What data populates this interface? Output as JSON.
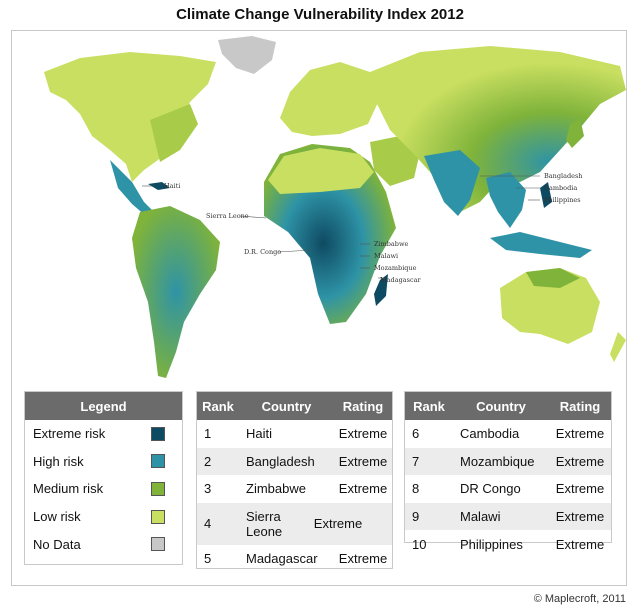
{
  "title": "Climate Change Vulnerability Index 2012",
  "credit": "© Maplecroft, 2011",
  "colors": {
    "extreme": "#0e4a62",
    "high": "#2e93a6",
    "medium": "#7fb33a",
    "low": "#c9df61",
    "no_data": "#c8c8c8"
  },
  "map_labels": {
    "haiti": "Haiti",
    "sierra_leone": "Sierra Leone",
    "dr_congo": "D.R. Congo",
    "zimbabwe": "Zimbabwe",
    "malawi": "Malawi",
    "mozambique": "Mozambique",
    "madagascar": "Madagascar",
    "bangladesh": "Bangladesh",
    "cambodia": "Cambodia",
    "philippines": "Philippines"
  },
  "legend": {
    "header": "Legend",
    "items": [
      {
        "label": "Extreme risk",
        "color": "#0e4a62"
      },
      {
        "label": "High risk",
        "color": "#2e93a6"
      },
      {
        "label": "Medium risk",
        "color": "#7fb33a"
      },
      {
        "label": "Low risk",
        "color": "#c9df61"
      },
      {
        "label": "No Data",
        "color": "#c8c8c8"
      }
    ]
  },
  "table": {
    "headers": {
      "rank": "Rank",
      "country": "Country",
      "rating": "Rating"
    },
    "rows_left": [
      {
        "rank": "1",
        "country": "Haiti",
        "rating": "Extreme"
      },
      {
        "rank": "2",
        "country": "Bangladesh",
        "rating": "Extreme"
      },
      {
        "rank": "3",
        "country": "Zimbabwe",
        "rating": "Extreme"
      },
      {
        "rank": "4",
        "country": "Sierra Leone",
        "rating": "Extreme"
      },
      {
        "rank": "5",
        "country": "Madagascar",
        "rating": "Extreme"
      }
    ],
    "rows_right": [
      {
        "rank": "6",
        "country": "Cambodia",
        "rating": "Extreme"
      },
      {
        "rank": "7",
        "country": "Mozambique",
        "rating": "Extreme"
      },
      {
        "rank": "8",
        "country": "DR Congo",
        "rating": "Extreme"
      },
      {
        "rank": "9",
        "country": "Malawi",
        "rating": "Extreme"
      },
      {
        "rank": "10",
        "country": "Philippines",
        "rating": "Extreme"
      }
    ]
  }
}
